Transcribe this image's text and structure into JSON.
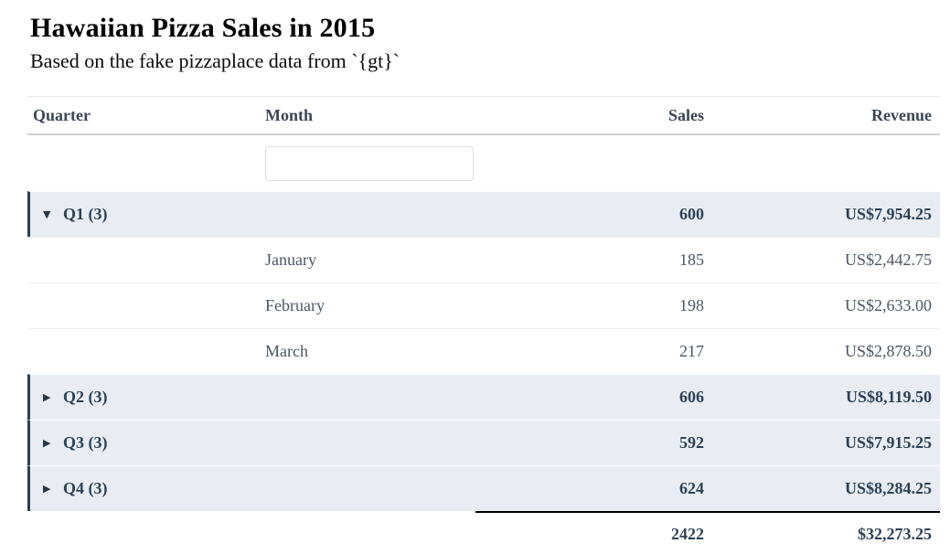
{
  "page": {
    "title": "Hawaiian Pizza Sales in 2015",
    "subtitle": "Based on the fake pizzaplace data from `{gt}`"
  },
  "table": {
    "headers": {
      "quarter": "Quarter",
      "month": "Month",
      "sales": "Sales",
      "revenue": "Revenue"
    },
    "filter": {
      "value": ""
    },
    "groups": [
      {
        "label": "Q1 (3)",
        "state": "expanded",
        "sales": "600",
        "revenue": "US$7,954.25",
        "rows": [
          {
            "month": "January",
            "sales": "185",
            "revenue": "US$2,442.75"
          },
          {
            "month": "February",
            "sales": "198",
            "revenue": "US$2,633.00"
          },
          {
            "month": "March",
            "sales": "217",
            "revenue": "US$2,878.50"
          }
        ]
      },
      {
        "label": "Q2 (3)",
        "state": "collapsed",
        "sales": "606",
        "revenue": "US$8,119.50",
        "rows": []
      },
      {
        "label": "Q3 (3)",
        "state": "collapsed",
        "sales": "592",
        "revenue": "US$7,915.25",
        "rows": []
      },
      {
        "label": "Q4 (3)",
        "state": "collapsed",
        "sales": "624",
        "revenue": "US$8,284.25",
        "rows": []
      }
    ],
    "footer": {
      "sales": "2422",
      "revenue": "$32,273.25"
    }
  },
  "icons": {
    "expanded_caret": "▼",
    "collapsed_caret": "▶"
  },
  "colors": {
    "group_row_bg": "#e9edf3",
    "group_accent_border": "#28415b",
    "header_text": "#3d4656",
    "group_text": "#2e4156",
    "detail_text": "#4c5663",
    "footer_rule": "#000000"
  }
}
